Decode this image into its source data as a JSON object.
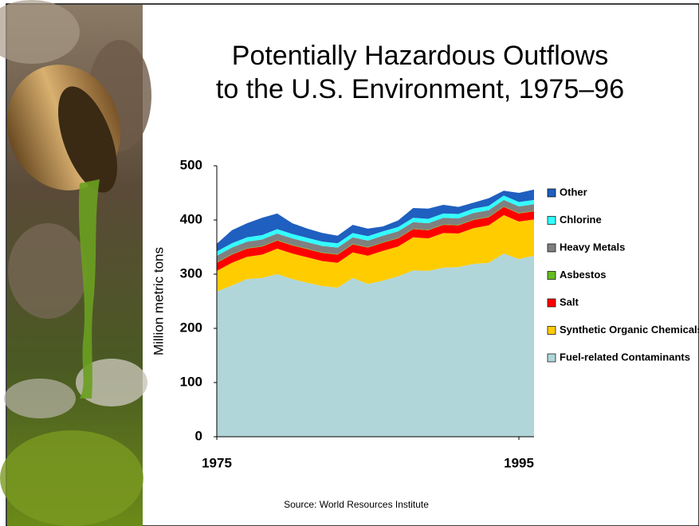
{
  "chart_data": {
    "type": "stacked_area",
    "title": [
      "Potentially Hazardous Outflows",
      "to the U.S. Environment, 1975–96"
    ],
    "ylabel": "Million metric tons",
    "source": "Source: World Resources Institute",
    "x": [
      1975,
      1976,
      1977,
      1978,
      1979,
      1980,
      1981,
      1982,
      1983,
      1984,
      1985,
      1986,
      1987,
      1988,
      1989,
      1990,
      1991,
      1992,
      1993,
      1994,
      1995,
      1996
    ],
    "xlim": [
      1975,
      1996
    ],
    "xticks": [
      1975,
      1995
    ],
    "ylim": [
      0,
      500
    ],
    "yticks": [
      0,
      100,
      200,
      300,
      400,
      500
    ],
    "grid": false,
    "legend": "right",
    "series": [
      {
        "name": "Fuel-related Contaminants",
        "color": "#b0d6da",
        "values": [
          268,
          279,
          291,
          293,
          300,
          291,
          284,
          278,
          275,
          293,
          282,
          288,
          296,
          307,
          306,
          312,
          313,
          319,
          321,
          338,
          328,
          334
        ]
      },
      {
        "name": "Synthetic Organic Chemicals",
        "color": "#ffcc00",
        "values": [
          38,
          42,
          41,
          43,
          47,
          47,
          47,
          46,
          46,
          47,
          52,
          55,
          55,
          61,
          60,
          64,
          62,
          66,
          69,
          71,
          69,
          67
        ]
      },
      {
        "name": "Salt",
        "color": "#ff0000",
        "values": [
          15,
          15,
          15,
          15,
          15,
          15,
          15,
          15,
          15,
          15,
          15,
          15,
          15,
          15,
          15,
          15,
          15,
          15,
          15,
          15,
          15,
          15
        ]
      },
      {
        "name": "Asbestos",
        "color": "#66bb22",
        "values": [
          1,
          1,
          1,
          1,
          1,
          1,
          1,
          1,
          1,
          1,
          1,
          1,
          1,
          1,
          1,
          1,
          1,
          1,
          1,
          1,
          1,
          1
        ]
      },
      {
        "name": "Heavy Metals",
        "color": "#808080",
        "values": [
          12,
          12,
          12,
          12,
          12,
          12,
          12,
          12,
          12,
          12,
          12,
          12,
          12,
          12,
          12,
          12,
          12,
          12,
          12,
          12,
          12,
          12
        ]
      },
      {
        "name": "Chlorine",
        "color": "#33ffff",
        "values": [
          8,
          8,
          8,
          8,
          8,
          8,
          8,
          8,
          8,
          8,
          8,
          8,
          8,
          8,
          8,
          8,
          8,
          8,
          8,
          8,
          8,
          8
        ]
      },
      {
        "name": "Other",
        "color": "#1f5fbf",
        "values": [
          14,
          24,
          26,
          32,
          29,
          20,
          17,
          16,
          14,
          15,
          14,
          9,
          12,
          18,
          19,
          16,
          13,
          11,
          14,
          9,
          17,
          19
        ]
      }
    ]
  }
}
